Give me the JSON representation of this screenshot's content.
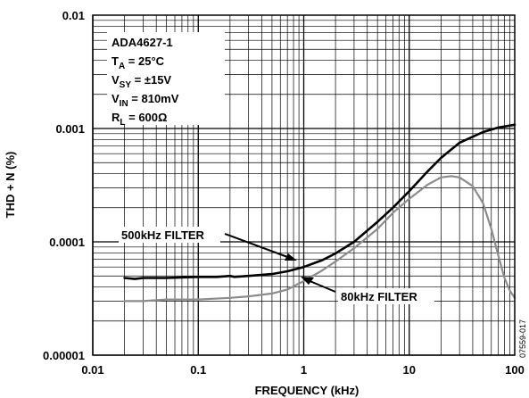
{
  "chart_data": {
    "type": "line",
    "xlabel": "FREQUENCY (kHz)",
    "ylabel": "THD + N (%)",
    "x_scale": "log",
    "y_scale": "log",
    "xlim": [
      0.01,
      100
    ],
    "ylim": [
      1e-05,
      0.01
    ],
    "grid": true,
    "x_ticks": [
      "0.01",
      "0.1",
      "1",
      "10",
      "100"
    ],
    "y_ticks": [
      "0.00001",
      "0.0001",
      "0.001",
      "0.01"
    ],
    "conditions": {
      "part": "ADA4627-1",
      "ta": {
        "main": "T",
        "sub": "A",
        "rest": " = 25°C"
      },
      "vsy": {
        "main": "V",
        "sub": "SY",
        "rest": " = ±15V"
      },
      "vin": {
        "main": "V",
        "sub": "IN",
        "rest": " = 810mV"
      },
      "rl": {
        "main": "R",
        "sub": "L",
        "rest": " = 600Ω"
      }
    },
    "series": [
      {
        "name": "500kHz FILTER",
        "color": "#000000",
        "x": [
          0.02,
          0.025,
          0.03,
          0.05,
          0.1,
          0.15,
          0.2,
          0.22,
          0.3,
          0.5,
          0.7,
          1,
          1.5,
          2,
          3,
          5,
          7,
          10,
          15,
          20,
          30,
          50,
          70,
          100
        ],
        "y": [
          4.8e-05,
          4.7e-05,
          4.8e-05,
          4.8e-05,
          4.9e-05,
          4.9e-05,
          5e-05,
          4.9e-05,
          5e-05,
          5.2e-05,
          5.5e-05,
          6e-05,
          6.9e-05,
          7.9e-05,
          0.0001,
          0.00015,
          0.0002,
          0.00028,
          0.00042,
          0.00055,
          0.00075,
          0.00093,
          0.00102,
          0.00108
        ]
      },
      {
        "name": "80kHz FILTER",
        "color": "#8c8c8c",
        "x": [
          0.02,
          0.03,
          0.05,
          0.1,
          0.2,
          0.3,
          0.5,
          0.7,
          1,
          1.5,
          2,
          3,
          5,
          7,
          10,
          15,
          20,
          25,
          30,
          40,
          50,
          60,
          70,
          80,
          90,
          100
        ],
        "y": [
          3e-05,
          3e-05,
          3.1e-05,
          3.1e-05,
          3.2e-05,
          3.3e-05,
          3.5e-05,
          3.8e-05,
          4.5e-05,
          5.6e-05,
          6.7e-05,
          8.8e-05,
          0.00013,
          0.00018,
          0.00024,
          0.00032,
          0.00037,
          0.00038,
          0.00037,
          0.00031,
          0.00022,
          0.00013,
          7.5e-05,
          4.8e-05,
          3.7e-05,
          3.2e-05
        ]
      }
    ],
    "labels": [
      {
        "text": "500kHz FILTER",
        "series": 0
      },
      {
        "text": "80kHz FILTER",
        "series": 1
      }
    ],
    "figure_id": "07559-017"
  }
}
